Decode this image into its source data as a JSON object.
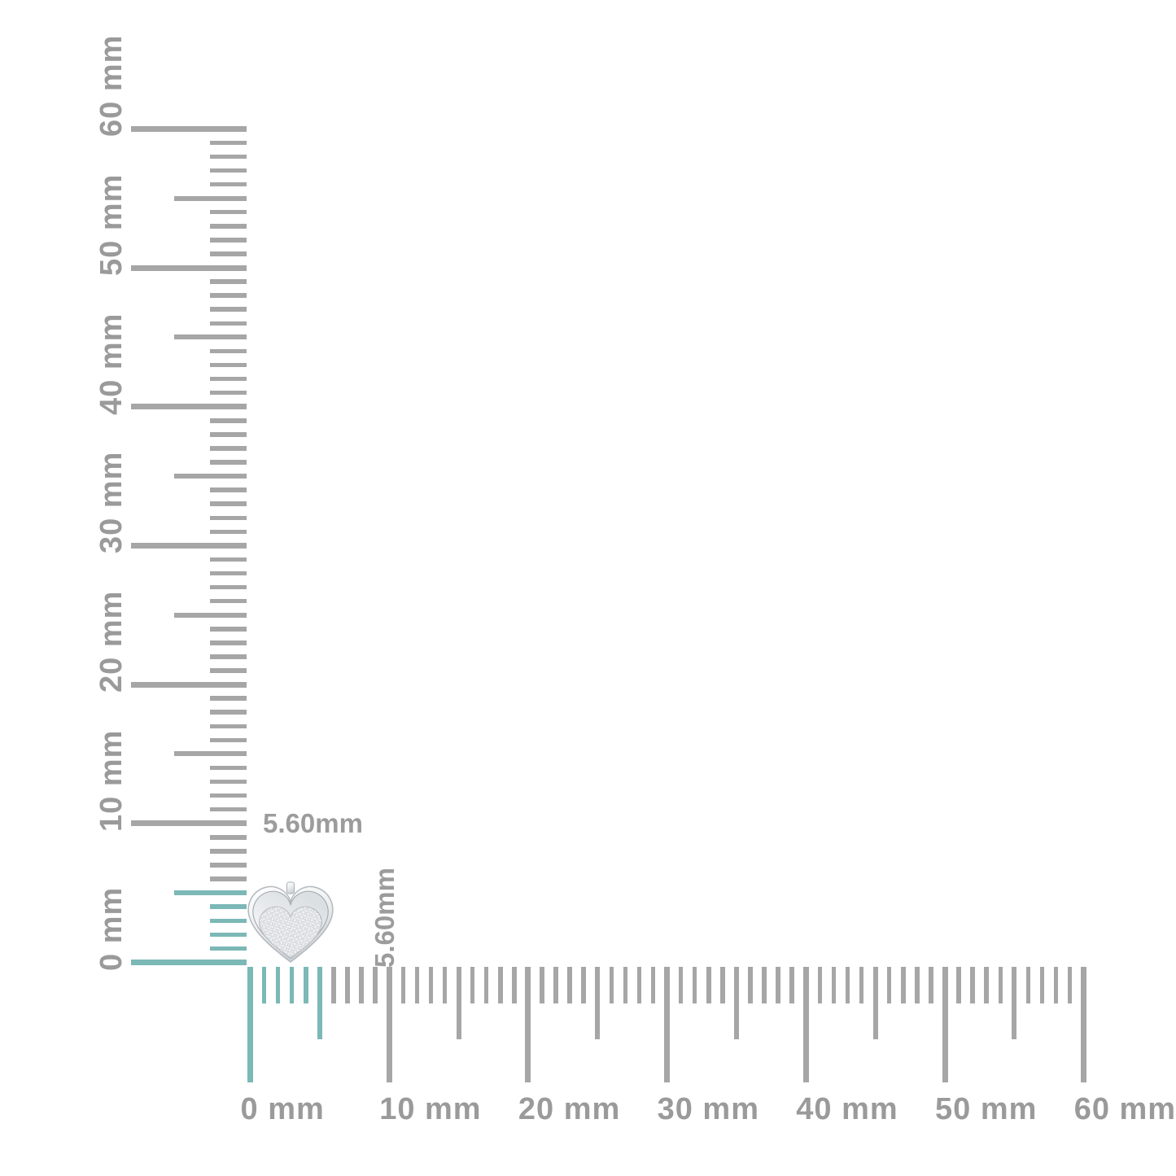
{
  "page": {
    "background": "#ffffff"
  },
  "colors": {
    "tick_gray": "#a6a6a6",
    "highlight_teal": "#7bb8b6",
    "ruler_label_gray": "#9a9a9a",
    "measure_label_gray": "#9c9c9c",
    "jewel_silver_light": "#ffffff",
    "jewel_silver_dark": "#c9ced3"
  },
  "rulers": {
    "unit": "mm",
    "min_mm": 0,
    "max_mm": 60,
    "major_step_mm": 10,
    "medium_step_mm": 5,
    "minor_step_mm": 1,
    "highlight_to_mm": 5.6,
    "vertical_labels": [
      {
        "mm": 0,
        "text": "0 mm"
      },
      {
        "mm": 10,
        "text": "10 mm"
      },
      {
        "mm": 20,
        "text": "20 mm"
      },
      {
        "mm": 30,
        "text": "30 mm"
      },
      {
        "mm": 40,
        "text": "40 mm"
      },
      {
        "mm": 50,
        "text": "50 mm"
      },
      {
        "mm": 60,
        "text": "60 mm"
      }
    ],
    "horizontal_labels": [
      {
        "mm": 0,
        "text": "0 mm"
      },
      {
        "mm": 10,
        "text": "10 mm"
      },
      {
        "mm": 20,
        "text": "20 mm"
      },
      {
        "mm": 30,
        "text": "30 mm"
      },
      {
        "mm": 40,
        "text": "40 mm"
      },
      {
        "mm": 50,
        "text": "50 mm"
      },
      {
        "mm": 60,
        "text": "60 mm"
      }
    ]
  },
  "measurement": {
    "width_label": "5.60mm",
    "height_label": "5.60mm",
    "width_mm": 5.6,
    "height_mm": 5.6
  },
  "item": {
    "icon": "pave-diamond-heart-stud"
  }
}
